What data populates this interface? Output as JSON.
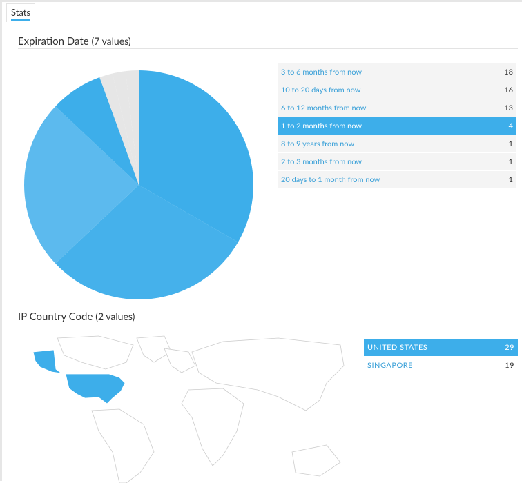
{
  "tab": "Stats",
  "sections": [
    {
      "title": "Expiration Date",
      "count_label": "(7 values)",
      "chart_data": {
        "type": "pie",
        "categories": [
          "3 to 6 months from now",
          "10 to 20 days from now",
          "6 to 12 months from now",
          "1 to 2 months from now",
          "8 to 9 years from now",
          "2 to 3 months from now",
          "20 days to 1 month from now"
        ],
        "values": [
          18,
          16,
          13,
          4,
          1,
          1,
          1
        ],
        "colors": [
          "#3daeea",
          "#45b1eb",
          "#5cbaee",
          "#3daeea",
          "#e6e6e6",
          "#e6e6e6",
          "#e6e6e6"
        ],
        "selected": 3
      }
    },
    {
      "title": "IP Country Code",
      "count_label": "(2 values)",
      "chart_data": {
        "type": "map",
        "categories": [
          "UNITED STATES",
          "SINGAPORE"
        ],
        "values": [
          29,
          19
        ],
        "color": "#3daeea",
        "selected": 0
      }
    }
  ]
}
